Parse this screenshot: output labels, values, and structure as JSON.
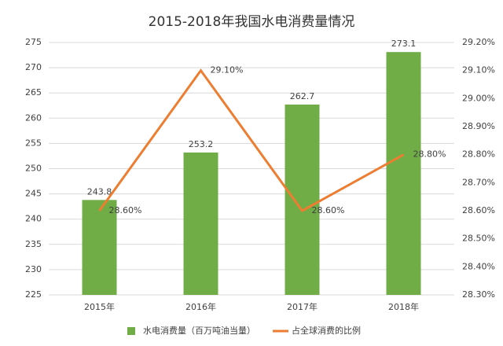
{
  "chart_data": {
    "type": "bar",
    "title": "2015-2018年我国水电消费量情况",
    "categories": [
      "2015年",
      "2016年",
      "2017年",
      "2018年"
    ],
    "series": [
      {
        "name": "水电消费量（百万吨油当量）",
        "type": "bar",
        "color": "#70ad47",
        "values": [
          243.8,
          253.2,
          262.7,
          273.1
        ]
      },
      {
        "name": "占全球消费的比例",
        "type": "line",
        "axis": "y2",
        "color": "#ed7d31",
        "values": [
          28.6,
          29.1,
          28.6,
          28.8
        ],
        "value_labels": [
          "28.60%",
          "29.10%",
          "28.60%",
          "28.80%"
        ]
      }
    ],
    "ylim": [
      225,
      275
    ],
    "yticks": [
      225,
      230,
      235,
      240,
      245,
      250,
      255,
      260,
      265,
      270,
      275
    ],
    "y2lim": [
      28.3,
      29.2
    ],
    "y2ticks": [
      {
        "value": 28.3,
        "label": "28.30%"
      },
      {
        "value": 28.4,
        "label": "28.40%"
      },
      {
        "value": 28.5,
        "label": "28.50%"
      },
      {
        "value": 28.6,
        "label": "28.60%"
      },
      {
        "value": 28.7,
        "label": "28.70%"
      },
      {
        "value": 28.8,
        "label": "28.80%"
      },
      {
        "value": 28.9,
        "label": "28.90%"
      },
      {
        "value": 29.0,
        "label": "29.00%"
      },
      {
        "value": 29.1,
        "label": "29.10%"
      },
      {
        "value": 29.2,
        "label": "29.20%"
      }
    ],
    "grid": true,
    "legend": "bottom"
  }
}
